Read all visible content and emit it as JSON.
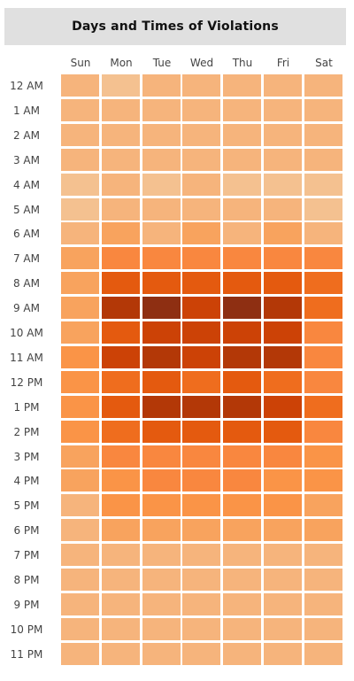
{
  "chart_data": {
    "type": "heatmap",
    "title": "Days and Times of Violations",
    "days": [
      "Sun",
      "Mon",
      "Tue",
      "Wed",
      "Thu",
      "Fri",
      "Sat"
    ],
    "hours": [
      "12 AM",
      "1 AM",
      "2 AM",
      "3 AM",
      "4 AM",
      "5 AM",
      "6 AM",
      "7 AM",
      "8 AM",
      "9 AM",
      "10 AM",
      "11 AM",
      "12 PM",
      "1 PM",
      "2 PM",
      "3 PM",
      "4 PM",
      "5 PM",
      "6 PM",
      "7 PM",
      "8 PM",
      "9 PM",
      "10 PM",
      "11 PM"
    ],
    "values": [
      [
        2,
        1,
        2,
        2,
        2,
        2,
        2
      ],
      [
        2,
        2,
        2,
        2,
        2,
        2,
        2
      ],
      [
        2,
        2,
        2,
        2,
        2,
        2,
        2
      ],
      [
        2,
        2,
        2,
        2,
        2,
        2,
        2
      ],
      [
        1,
        2,
        1,
        2,
        1,
        1,
        1
      ],
      [
        1,
        2,
        2,
        2,
        2,
        2,
        1
      ],
      [
        2,
        3,
        2,
        3,
        2,
        3,
        2
      ],
      [
        3,
        5,
        5,
        5,
        5,
        5,
        5
      ],
      [
        3,
        7,
        7,
        7,
        7,
        7,
        6
      ],
      [
        3,
        9,
        10,
        8,
        10,
        9,
        6
      ],
      [
        3,
        7,
        8,
        8,
        8,
        8,
        5
      ],
      [
        4,
        8,
        9,
        8,
        9,
        9,
        5
      ],
      [
        4,
        6,
        7,
        6,
        7,
        6,
        5
      ],
      [
        4,
        7,
        9,
        9,
        9,
        8,
        6
      ],
      [
        4,
        6,
        7,
        7,
        7,
        7,
        5
      ],
      [
        3,
        5,
        5,
        5,
        5,
        5,
        4
      ],
      [
        3,
        4,
        5,
        5,
        5,
        4,
        4
      ],
      [
        2,
        4,
        4,
        4,
        4,
        4,
        3
      ],
      [
        2,
        3,
        3,
        3,
        3,
        3,
        3
      ],
      [
        2,
        2,
        2,
        2,
        2,
        2,
        2
      ],
      [
        2,
        2,
        2,
        2,
        2,
        2,
        2
      ],
      [
        2,
        2,
        2,
        2,
        2,
        2,
        2
      ],
      [
        2,
        2,
        2,
        2,
        2,
        2,
        2
      ],
      [
        2,
        2,
        2,
        2,
        2,
        2,
        2
      ]
    ],
    "scale_colors": [
      "#f4c99f",
      "#f4c190",
      "#f6b47c",
      "#f8a35e",
      "#fa9447",
      "#f9873f",
      "#ef6d1e",
      "#e45a0f",
      "#cc4206",
      "#b33807",
      "#8e2f12"
    ],
    "legend": "none",
    "grid": false
  }
}
